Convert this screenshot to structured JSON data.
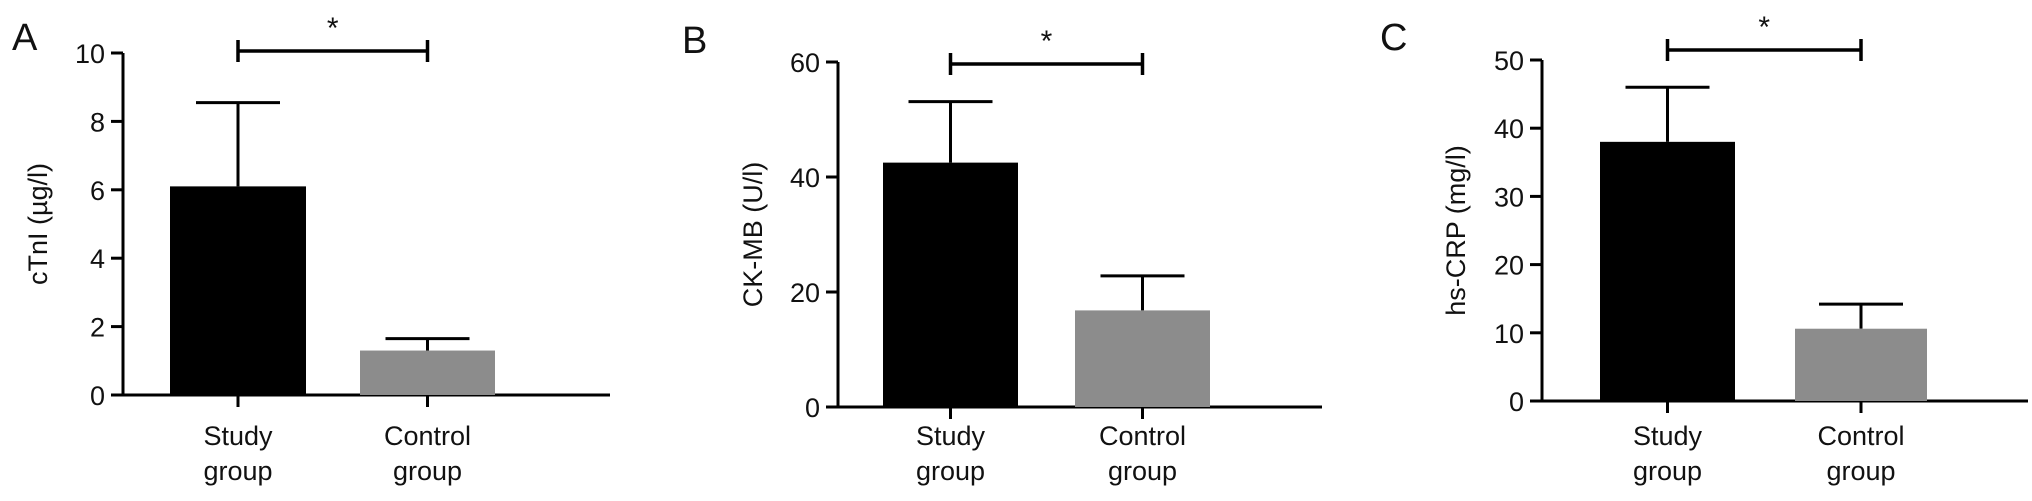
{
  "chart_data": [
    {
      "type": "bar",
      "panel_label": "A",
      "ylabel": "cTnI (µg/l)",
      "ylim": [
        0,
        10
      ],
      "yticks": [
        0,
        2,
        4,
        6,
        8,
        10
      ],
      "categories": [
        [
          "Study",
          "group"
        ],
        [
          "Control",
          "group"
        ]
      ],
      "values": [
        6.1,
        1.3
      ],
      "errors": [
        2.45,
        0.35
      ],
      "significance": "*",
      "bar_colors": [
        "#000000",
        "#8c8c8c"
      ]
    },
    {
      "type": "bar",
      "panel_label": "B",
      "ylabel": "CK-MB (U/l)",
      "ylim": [
        0,
        60
      ],
      "yticks": [
        0,
        20,
        40,
        60
      ],
      "categories": [
        [
          "Study",
          "group"
        ],
        [
          "Control",
          "group"
        ]
      ],
      "values": [
        42.5,
        16.8
      ],
      "errors": [
        10.6,
        6.0
      ],
      "significance": "*",
      "bar_colors": [
        "#000000",
        "#8c8c8c"
      ]
    },
    {
      "type": "bar",
      "panel_label": "C",
      "ylabel": "hs-CRP (mg/l)",
      "ylim": [
        0,
        50
      ],
      "yticks": [
        0,
        10,
        20,
        30,
        40,
        50
      ],
      "categories": [
        [
          "Study",
          "group"
        ],
        [
          "Control",
          "group"
        ]
      ],
      "values": [
        38.0,
        10.6
      ],
      "errors": [
        8.0,
        3.6
      ],
      "significance": "*",
      "bar_colors": [
        "#000000",
        "#8c8c8c"
      ]
    }
  ]
}
